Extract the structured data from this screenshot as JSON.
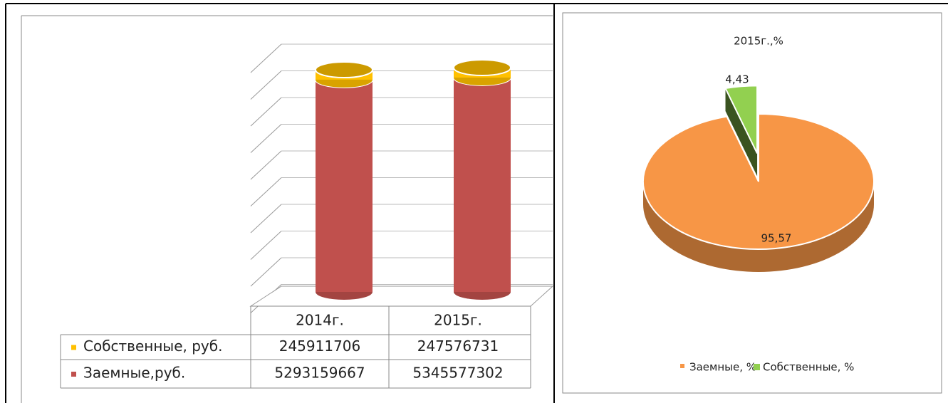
{
  "chart_data": [
    {
      "type": "bar3d_stacked_table",
      "categories": [
        "2014г.",
        "2015г."
      ],
      "series": [
        {
          "name": "Собственные, руб.",
          "color": "#ffc000",
          "values": [
            245911706,
            247576731
          ]
        },
        {
          "name": "Заемные,руб.",
          "color": "#c0504d",
          "values": [
            5293159667,
            5345577302
          ]
        }
      ]
    },
    {
      "type": "pie3d",
      "title": "2015г.,%",
      "categories": [
        "Заемные, %",
        "Собственные, %"
      ],
      "values": [
        95.57,
        4.43
      ],
      "value_labels": [
        "95,57",
        "4,43"
      ],
      "colors": [
        "#f79646",
        "#92d050"
      ]
    }
  ]
}
